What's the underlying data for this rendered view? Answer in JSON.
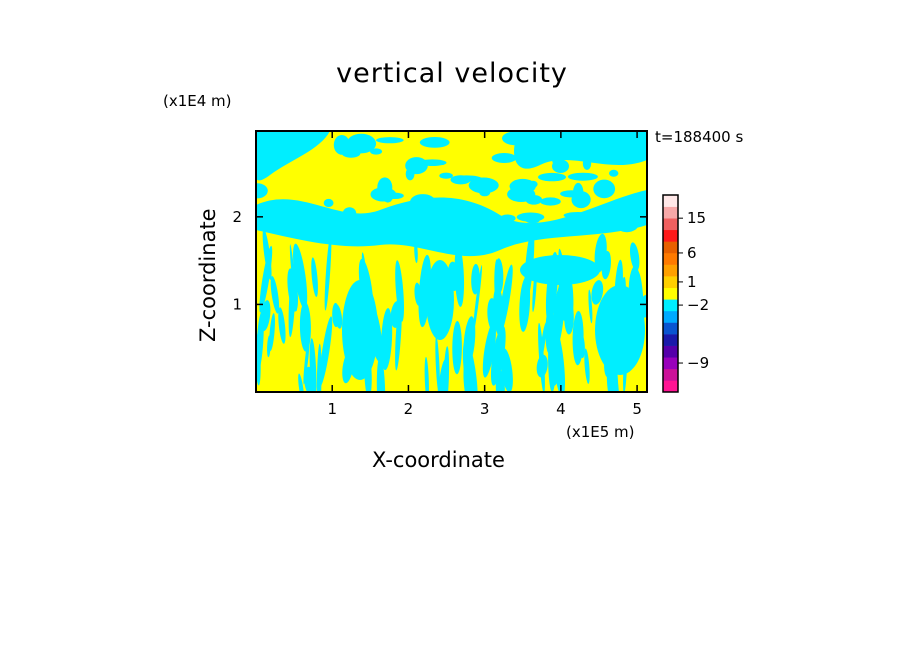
{
  "chart_data": {
    "type": "heatmap",
    "title": "vertical velocity",
    "xlabel": "X-coordinate",
    "ylabel": "Z-coordinate",
    "x_unit": "(x1E5 m)",
    "y_unit": "(x1E4 m)",
    "time_label": "t=188400 s",
    "xlim": [
      0,
      5.13
    ],
    "ylim": [
      0,
      2.98
    ],
    "x_ticks": [
      1,
      2,
      3,
      4,
      5
    ],
    "y_ticks": [
      1,
      2
    ],
    "x_tick_labels": [
      "1",
      "2",
      "3",
      "4",
      "5"
    ],
    "y_tick_labels": [
      "1",
      "2"
    ],
    "field_colors": {
      "positive": "#ffff00",
      "negative": "#00eeff"
    },
    "colorbar": {
      "levels": [
        {
          "color": "#ff1493"
        },
        {
          "color": "#cc1199"
        },
        {
          "color": "#9900bb"
        },
        {
          "color": "#5500aa"
        },
        {
          "color": "#1a1aaa"
        },
        {
          "color": "#0a55d0"
        },
        {
          "color": "#00aaff"
        },
        {
          "color": "#00eeff"
        },
        {
          "color": "#ffff00"
        },
        {
          "color": "#ffd000"
        },
        {
          "color": "#ffa000"
        },
        {
          "color": "#ff7a00"
        },
        {
          "color": "#e86000"
        },
        {
          "color": "#ff1a1a"
        },
        {
          "color": "#f06060"
        },
        {
          "color": "#f7a8a8"
        },
        {
          "color": "#ffe8e8"
        }
      ],
      "labels": [
        {
          "text": "15",
          "level": 15
        },
        {
          "text": "6",
          "level": 12
        },
        {
          "text": "1",
          "level": 9.5
        },
        {
          "text": "−2",
          "level": 7.5
        },
        {
          "text": "−9",
          "level": 2.5
        }
      ]
    }
  }
}
